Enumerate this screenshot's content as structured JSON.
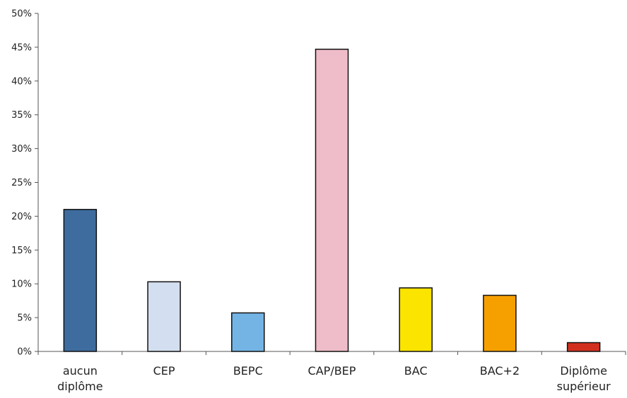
{
  "chart_data": {
    "type": "bar",
    "categories": [
      [
        "aucun",
        "diplôme"
      ],
      [
        "CEP"
      ],
      [
        "BEPC"
      ],
      [
        "CAP/BEP"
      ],
      [
        "BAC"
      ],
      [
        "BAC+2"
      ],
      [
        "Diplôme",
        "supérieur"
      ]
    ],
    "values": [
      21.0,
      10.3,
      5.7,
      44.7,
      9.4,
      8.3,
      1.3
    ],
    "colors": [
      "#3f6c9e",
      "#d3dff0",
      "#74b4e4",
      "#efbcc9",
      "#fbe400",
      "#f6a000",
      "#d2301f"
    ],
    "ylim": [
      0,
      50
    ],
    "y_ticks": [
      "0%",
      "5%",
      "10%",
      "15%",
      "20%",
      "25%",
      "30%",
      "35%",
      "40%",
      "45%",
      "50%"
    ],
    "grid": false,
    "title": "",
    "xlabel": "",
    "ylabel": ""
  }
}
